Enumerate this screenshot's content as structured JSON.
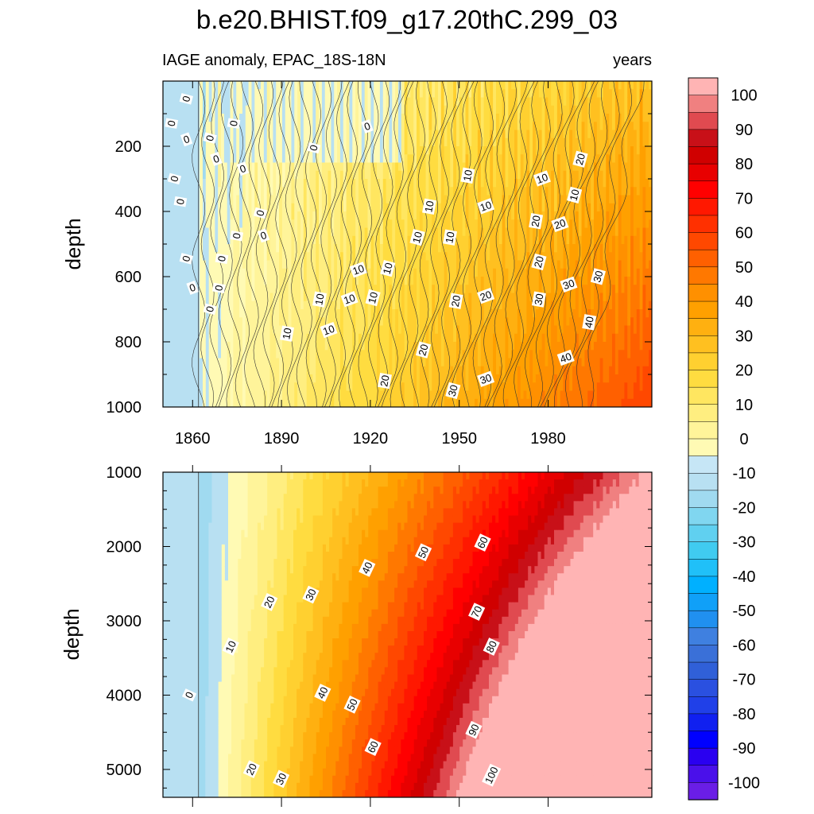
{
  "title": "b.e20.BHIST.f09_g17.20thC.299_03",
  "left_string": "IAGE anomaly, EPAC_18S-18N",
  "right_string": "years",
  "colors": {
    "levels": [
      -100,
      -95,
      -90,
      -85,
      -80,
      -75,
      -70,
      -65,
      -60,
      -55,
      -50,
      -45,
      -40,
      -35,
      -30,
      -25,
      -20,
      -15,
      -10,
      -5,
      0,
      5,
      10,
      15,
      20,
      25,
      30,
      35,
      40,
      45,
      50,
      55,
      60,
      65,
      70,
      75,
      80,
      85,
      90,
      95,
      100
    ],
    "fill": [
      "#8a2be2",
      "#6a1ee6",
      "#4a10ea",
      "#2a00f0",
      "#0000ff",
      "#1020f0",
      "#2040e8",
      "#2a50e0",
      "#3060d8",
      "#3a70d8",
      "#3f80e0",
      "#2090f0",
      "#10a0f8",
      "#00b0ff",
      "#20c0f8",
      "#40cbf0",
      "#60d0f0",
      "#80d6f0",
      "#a0daf0",
      "#b8e0f2",
      "#c6e6f6",
      "#fffab4",
      "#fff49a",
      "#ffee80",
      "#ffe660",
      "#ffdc40",
      "#ffd030",
      "#ffc020",
      "#ffb010",
      "#ffa000",
      "#ff9000",
      "#ff7800",
      "#ff6000",
      "#ff4800",
      "#ff3000",
      "#ff1800",
      "#ff0000",
      "#e80000",
      "#d00000",
      "#c81018",
      "#e04a50",
      "#f08080",
      "#ffb4b4"
    ]
  },
  "chart_data": [
    {
      "type": "heatmap",
      "subtype": "contour",
      "panel": "upper",
      "ylabel": "depth",
      "xlim": [
        1850,
        2015
      ],
      "ylim": [
        1000,
        0
      ],
      "yticks": [
        200,
        400,
        600,
        800,
        1000
      ],
      "xticks": [
        1860,
        1890,
        1920,
        1950,
        1980
      ],
      "contour_interval": 5,
      "contour_labels": [
        {
          "text": "0",
          "year": 1858,
          "depth": 55
        },
        {
          "text": "0",
          "year": 1853,
          "depth": 130
        },
        {
          "text": "0",
          "year": 1858,
          "depth": 180
        },
        {
          "text": "0",
          "year": 1866,
          "depth": 175
        },
        {
          "text": "0",
          "year": 1874,
          "depth": 130
        },
        {
          "text": "0",
          "year": 1868,
          "depth": 240
        },
        {
          "text": "0",
          "year": 1854,
          "depth": 300
        },
        {
          "text": "0",
          "year": 1856,
          "depth": 370
        },
        {
          "text": "0",
          "year": 1877,
          "depth": 270
        },
        {
          "text": "0",
          "year": 1883,
          "depth": 405
        },
        {
          "text": "0",
          "year": 1875,
          "depth": 475
        },
        {
          "text": "0",
          "year": 1884,
          "depth": 475
        },
        {
          "text": "0",
          "year": 1858,
          "depth": 545
        },
        {
          "text": "0",
          "year": 1870,
          "depth": 545
        },
        {
          "text": "0",
          "year": 1860,
          "depth": 635
        },
        {
          "text": "0",
          "year": 1866,
          "depth": 700
        },
        {
          "text": "0",
          "year": 1869,
          "depth": 635
        },
        {
          "text": "0",
          "year": 1919,
          "depth": 140
        },
        {
          "text": "0",
          "year": 1901,
          "depth": 205
        },
        {
          "text": "10",
          "year": 1953,
          "depth": 290
        },
        {
          "text": "10",
          "year": 1978,
          "depth": 300
        },
        {
          "text": "10",
          "year": 1989,
          "depth": 350
        },
        {
          "text": "10",
          "year": 1940,
          "depth": 385
        },
        {
          "text": "10",
          "year": 1959,
          "depth": 385
        },
        {
          "text": "10",
          "year": 1936,
          "depth": 480
        },
        {
          "text": "10",
          "year": 1947,
          "depth": 480
        },
        {
          "text": "10",
          "year": 1916,
          "depth": 580
        },
        {
          "text": "10",
          "year": 1926,
          "depth": 575
        },
        {
          "text": "10",
          "year": 1903,
          "depth": 670
        },
        {
          "text": "10",
          "year": 1913,
          "depth": 670
        },
        {
          "text": "10",
          "year": 1921,
          "depth": 665
        },
        {
          "text": "10",
          "year": 1892,
          "depth": 775
        },
        {
          "text": "10",
          "year": 1906,
          "depth": 765
        },
        {
          "text": "20",
          "year": 1991,
          "depth": 240
        },
        {
          "text": "20",
          "year": 1976,
          "depth": 430
        },
        {
          "text": "20",
          "year": 1984,
          "depth": 440
        },
        {
          "text": "20",
          "year": 1977,
          "depth": 555
        },
        {
          "text": "20",
          "year": 1949,
          "depth": 675
        },
        {
          "text": "20",
          "year": 1959,
          "depth": 660
        },
        {
          "text": "20",
          "year": 1938,
          "depth": 825
        },
        {
          "text": "20",
          "year": 1925,
          "depth": 920
        },
        {
          "text": "30",
          "year": 1987,
          "depth": 625
        },
        {
          "text": "30",
          "year": 1997,
          "depth": 600
        },
        {
          "text": "30",
          "year": 1977,
          "depth": 670
        },
        {
          "text": "30",
          "year": 1959,
          "depth": 915
        },
        {
          "text": "30",
          "year": 1948,
          "depth": 950
        },
        {
          "text": "40",
          "year": 1994,
          "depth": 740
        },
        {
          "text": "40",
          "year": 1986,
          "depth": 850
        }
      ]
    },
    {
      "type": "heatmap",
      "subtype": "contour",
      "panel": "lower",
      "ylabel": "depth",
      "xlim": [
        1850,
        2015
      ],
      "ylim": [
        5375,
        1000
      ],
      "yticks": [
        1000,
        2000,
        3000,
        4000,
        5000
      ],
      "contour_interval": 5,
      "contour_labels": [
        {
          "text": "0",
          "year": 1859,
          "depth": 4000
        },
        {
          "text": "10",
          "year": 1873,
          "depth": 3350
        },
        {
          "text": "20",
          "year": 1886,
          "depth": 2750
        },
        {
          "text": "30",
          "year": 1900,
          "depth": 2650
        },
        {
          "text": "40",
          "year": 1919,
          "depth": 2290
        },
        {
          "text": "50",
          "year": 1938,
          "depth": 2080
        },
        {
          "text": "60",
          "year": 1958,
          "depth": 1950
        },
        {
          "text": "70",
          "year": 1956,
          "depth": 2880
        },
        {
          "text": "80",
          "year": 1961,
          "depth": 3350
        },
        {
          "text": "40",
          "year": 1904,
          "depth": 3970
        },
        {
          "text": "50",
          "year": 1914,
          "depth": 4130
        },
        {
          "text": "60",
          "year": 1921,
          "depth": 4700
        },
        {
          "text": "90",
          "year": 1955,
          "depth": 4470
        },
        {
          "text": "100",
          "year": 1961,
          "depth": 5080
        },
        {
          "text": "20",
          "year": 1880,
          "depth": 5000
        },
        {
          "text": "30",
          "year": 1890,
          "depth": 5130
        }
      ]
    }
  ],
  "colorbar": {
    "labels": [
      "100",
      "90",
      "80",
      "70",
      "60",
      "50",
      "40",
      "30",
      "20",
      "10",
      "0",
      "-10",
      "-20",
      "-30",
      "-40",
      "-50",
      "-60",
      "-70",
      "-80",
      "-90",
      "-100"
    ]
  }
}
